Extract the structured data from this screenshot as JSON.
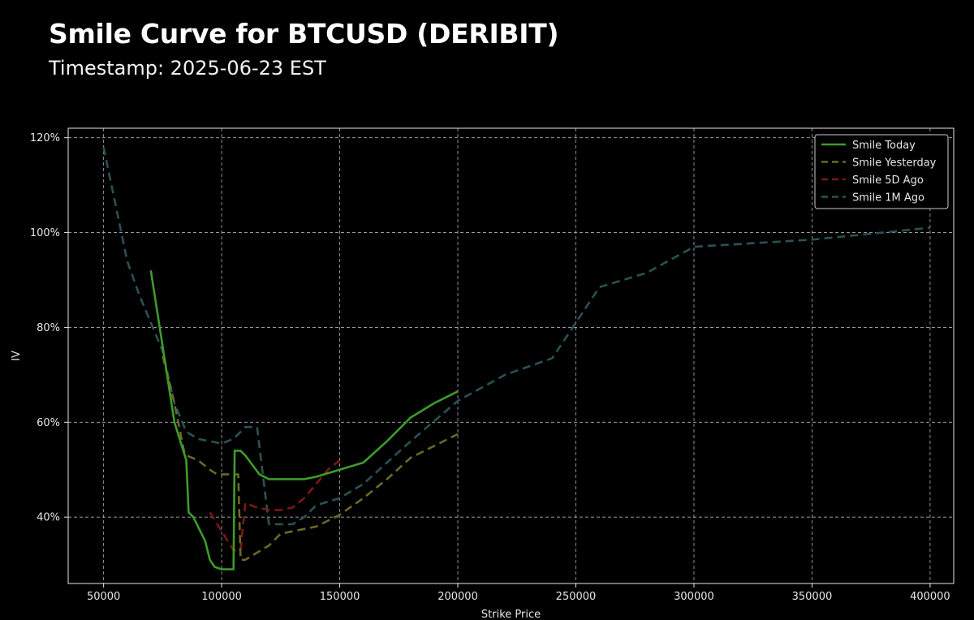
{
  "chart_data": {
    "type": "line",
    "title": "Smile Curve for BTCUSD (DERIBIT)",
    "subtitle": "Timestamp: 2025-06-23 EST",
    "xlabel": "Strike Price",
    "ylabel": "IV",
    "xlim": [
      35000,
      410000
    ],
    "ylim": [
      0.26,
      1.22
    ],
    "xticks": [
      50000,
      100000,
      150000,
      200000,
      250000,
      300000,
      350000,
      400000
    ],
    "xtick_labels": [
      "50000",
      "100000",
      "150000",
      "200000",
      "250000",
      "300000",
      "350000",
      "400000"
    ],
    "yticks": [
      0.4,
      0.6,
      0.8,
      1.0,
      1.2
    ],
    "ytick_labels": [
      "40%",
      "60%",
      "80%",
      "100%",
      "120%"
    ],
    "grid": true,
    "legend": "top-right",
    "series": [
      {
        "name": "Smile Today",
        "color": "#3e9b2c",
        "dash": "solid",
        "x": [
          70000,
          75000,
          80000,
          85000,
          86000,
          88000,
          90000,
          93000,
          95000,
          97000,
          100000,
          103000,
          105000,
          105500,
          108000,
          110000,
          113000,
          116000,
          120000,
          125000,
          130000,
          135000,
          140000,
          150000,
          160000,
          170000,
          180000,
          190000,
          200000
        ],
        "y": [
          0.92,
          0.76,
          0.6,
          0.52,
          0.41,
          0.4,
          0.38,
          0.35,
          0.31,
          0.295,
          0.29,
          0.29,
          0.29,
          0.54,
          0.54,
          0.53,
          0.51,
          0.49,
          0.48,
          0.48,
          0.48,
          0.48,
          0.485,
          0.5,
          0.515,
          0.56,
          0.61,
          0.64,
          0.665
        ]
      },
      {
        "name": "Smile Yesterday",
        "color": "#6b6a24",
        "dash": "10,6",
        "x": [
          75000,
          80000,
          84000,
          85000,
          90000,
          95000,
          98000,
          100000,
          105000,
          107000,
          108000,
          110000,
          115000,
          120000,
          125000,
          130000,
          140000,
          150000,
          160000,
          170000,
          180000,
          190000,
          200000
        ],
        "y": [
          0.74,
          0.64,
          0.54,
          0.53,
          0.52,
          0.5,
          0.49,
          0.49,
          0.49,
          0.49,
          0.31,
          0.31,
          0.325,
          0.34,
          0.365,
          0.37,
          0.38,
          0.405,
          0.44,
          0.48,
          0.525,
          0.55,
          0.575
        ]
      },
      {
        "name": "Smile 5D Ago",
        "color": "#7a1a12",
        "dash": "10,6",
        "x": [
          95000,
          100000,
          105000,
          108000,
          110000,
          115000,
          120000,
          125000,
          130000,
          135000,
          140000,
          145000,
          150000
        ],
        "y": [
          0.41,
          0.37,
          0.33,
          0.33,
          0.43,
          0.42,
          0.415,
          0.415,
          0.42,
          0.44,
          0.47,
          0.5,
          0.52
        ]
      },
      {
        "name": "Smile 1M Ago",
        "color": "#2a5256",
        "dash": "10,6",
        "x": [
          50000,
          55000,
          60000,
          65000,
          70000,
          75000,
          80000,
          85000,
          90000,
          95000,
          100000,
          105000,
          110000,
          115000,
          120000,
          125000,
          130000,
          135000,
          140000,
          150000,
          160000,
          180000,
          200000,
          220000,
          240000,
          250000,
          260000,
          280000,
          300000,
          350000,
          400000
        ],
        "y": [
          1.18,
          1.06,
          0.94,
          0.87,
          0.81,
          0.75,
          0.64,
          0.58,
          0.565,
          0.56,
          0.555,
          0.565,
          0.59,
          0.59,
          0.385,
          0.385,
          0.385,
          0.4,
          0.425,
          0.44,
          0.47,
          0.56,
          0.645,
          0.7,
          0.735,
          0.81,
          0.885,
          0.915,
          0.97,
          0.985,
          1.01
        ]
      }
    ]
  }
}
